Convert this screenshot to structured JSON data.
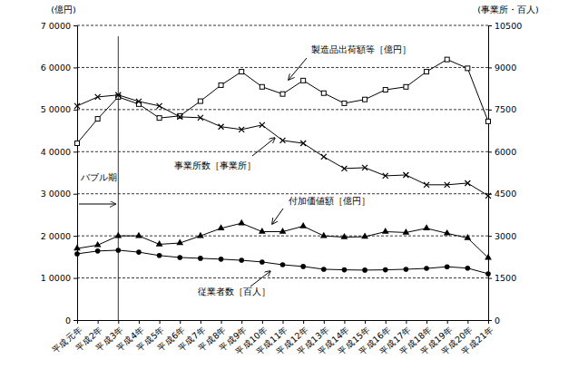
{
  "chart_data": {
    "type": "line",
    "y_label": "(億円)",
    "y2_label": "(事業所・百人)",
    "categories": [
      "平成元年",
      "平成2年",
      "平成3年",
      "平成4年",
      "平成5年",
      "平成6年",
      "平成7年",
      "平成8年",
      "平成9年",
      "平成10年",
      "平成11年",
      "平成12年",
      "平成13年",
      "平成14年",
      "平成15年",
      "平成16年",
      "平成17年",
      "平成18年",
      "平成19年",
      "平成20年",
      "平成21年"
    ],
    "ylim": [
      0,
      70000
    ],
    "yticks": [
      0,
      {
        "value": 10000,
        "label": "1 0000"
      },
      {
        "value": 20000,
        "label": "2 0000"
      },
      {
        "value": 30000,
        "label": "3 0000"
      },
      {
        "value": 40000,
        "label": "4 0000"
      },
      {
        "value": 50000,
        "label": "5 0000"
      },
      {
        "value": 60000,
        "label": "6 0000"
      },
      {
        "value": 70000,
        "label": "7 0000"
      }
    ],
    "y2lim": [
      0,
      10500
    ],
    "y2ticks": [
      0,
      1500,
      3000,
      4500,
      6000,
      7500,
      9000,
      10500
    ],
    "grid": true,
    "annotations": [
      {
        "text": "バブル期",
        "x": "平成3年"
      }
    ],
    "series": [
      {
        "name": "製造品出荷額等［億円］",
        "color": "#000000",
        "marker": "square",
        "line_style": "solid",
        "values": [
          42000,
          47800,
          53000,
          51300,
          48000,
          48500,
          52000,
          55800,
          59000,
          55400,
          53700,
          56900,
          53900,
          51500,
          52400,
          54700,
          55400,
          59000,
          61900,
          59800,
          47200
        ]
      },
      {
        "name": "事業所数［事業所］",
        "color": "#000000",
        "marker": "x",
        "line_style": "solid",
        "axis": "y2",
        "values": [
          7630,
          7950,
          8020,
          7790,
          7630,
          7240,
          7210,
          6890,
          6790,
          6950,
          6400,
          6300,
          5820,
          5400,
          5430,
          5140,
          5170,
          4820,
          4820,
          4880,
          4430
        ]
      },
      {
        "name": "付加価値額［億円］",
        "color": "#000000",
        "marker": "triangle",
        "line_style": "solid",
        "values": [
          17000,
          17800,
          20000,
          20000,
          18000,
          18300,
          20000,
          21800,
          23000,
          21000,
          21000,
          22300,
          20000,
          19700,
          19800,
          21000,
          20800,
          21800,
          20600,
          19500,
          14800
        ]
      },
      {
        "name": "従業者数［百人］",
        "color": "#000000",
        "marker": "circle",
        "line_style": "solid",
        "axis": "y2",
        "values": [
          2360,
          2460,
          2490,
          2420,
          2300,
          2230,
          2200,
          2170,
          2130,
          2070,
          1970,
          1910,
          1810,
          1790,
          1780,
          1790,
          1810,
          1840,
          1900,
          1850,
          1650
        ]
      }
    ]
  }
}
